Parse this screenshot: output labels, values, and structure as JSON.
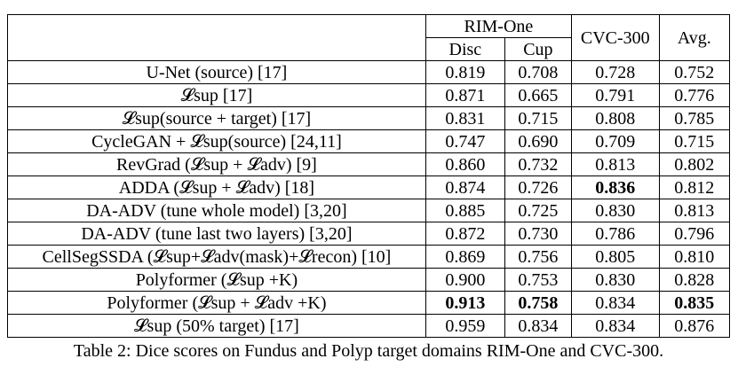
{
  "table": {
    "group_header": "RIM-One",
    "sub_headers": [
      "Disc",
      "Cup"
    ],
    "col_cvc": "CVC-300",
    "col_avg": "Avg.",
    "rows": [
      {
        "method": "U-Net (source) [17]",
        "disc": "0.819",
        "cup": "0.708",
        "cvc": "0.728",
        "avg": "0.752"
      },
      {
        "method": "𝓛sup [17]",
        "disc": "0.871",
        "cup": "0.665",
        "cvc": "0.791",
        "avg": "0.776"
      },
      {
        "method": "𝓛sup(source + target) [17]",
        "disc": "0.831",
        "cup": "0.715",
        "cvc": "0.808",
        "avg": "0.785"
      },
      {
        "method": "CycleGAN + 𝓛sup(source) [24,11]",
        "disc": "0.747",
        "cup": "0.690",
        "cvc": "0.709",
        "avg": "0.715"
      },
      {
        "method": "RevGrad (𝓛sup + 𝓛adv) [9]",
        "disc": "0.860",
        "cup": "0.732",
        "cvc": "0.813",
        "avg": "0.802"
      },
      {
        "method": "ADDA (𝓛sup + 𝓛adv) [18]",
        "disc": "0.874",
        "cup": "0.726",
        "cvc": "0.836",
        "avg": "0.812"
      },
      {
        "method": "DA-ADV (tune whole model) [3,20]",
        "disc": "0.885",
        "cup": "0.725",
        "cvc": "0.830",
        "avg": "0.813"
      },
      {
        "method": "DA-ADV (tune last two layers) [3,20]",
        "disc": "0.872",
        "cup": "0.730",
        "cvc": "0.786",
        "avg": "0.796"
      },
      {
        "method": "CellSegSSDA (𝓛sup+𝓛adv(mask)+𝓛recon) [10]",
        "disc": "0.869",
        "cup": "0.756",
        "cvc": "0.805",
        "avg": "0.810"
      },
      {
        "method": "Polyformer (𝓛sup +K)",
        "disc": "0.900",
        "cup": "0.753",
        "cvc": "0.830",
        "avg": "0.828"
      },
      {
        "method": "Polyformer (𝓛sup + 𝓛adv +K)",
        "disc": "0.913",
        "cup": "0.758",
        "cvc": "0.834",
        "avg": "0.835"
      },
      {
        "method": "𝓛sup (50% target) [17]",
        "disc": "0.959",
        "cup": "0.834",
        "cvc": "0.834",
        "avg": "0.876"
      }
    ]
  },
  "caption": "Table 2: Dice scores on Fundus and Polyp target domains RIM-One and CVC-300."
}
